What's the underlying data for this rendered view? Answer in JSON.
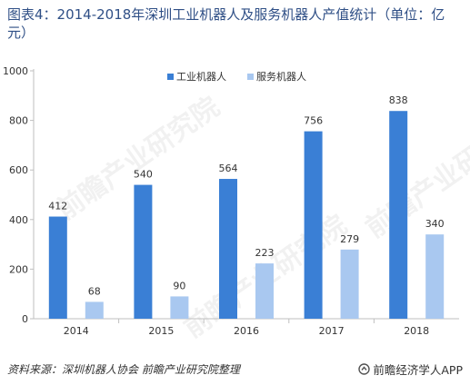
{
  "title": "图表4：2014-2018年深圳工业机器人及服务机器人产值统计（单位：亿元）",
  "source": "资料来源：深圳机器人协会  前瞻产业研究院整理",
  "brand": "前瞻经济学人APP",
  "watermark": "前瞻产业研究院",
  "colors": {
    "industrial": "#3a7fd5",
    "service": "#a9c8f0",
    "axis": "#bfbfbf",
    "text": "#333333"
  },
  "chart_data": {
    "type": "bar",
    "categories": [
      "2014",
      "2015",
      "2016",
      "2017",
      "2018"
    ],
    "series": [
      {
        "name": "工业机器人",
        "values": [
          412,
          540,
          564,
          756,
          838
        ]
      },
      {
        "name": "服务机器人",
        "values": [
          68,
          90,
          223,
          279,
          340
        ]
      }
    ],
    "ylim": [
      0,
      1000
    ],
    "yticks": [
      0,
      200,
      400,
      600,
      800,
      1000
    ],
    "legend": "top-center",
    "grid": false
  }
}
